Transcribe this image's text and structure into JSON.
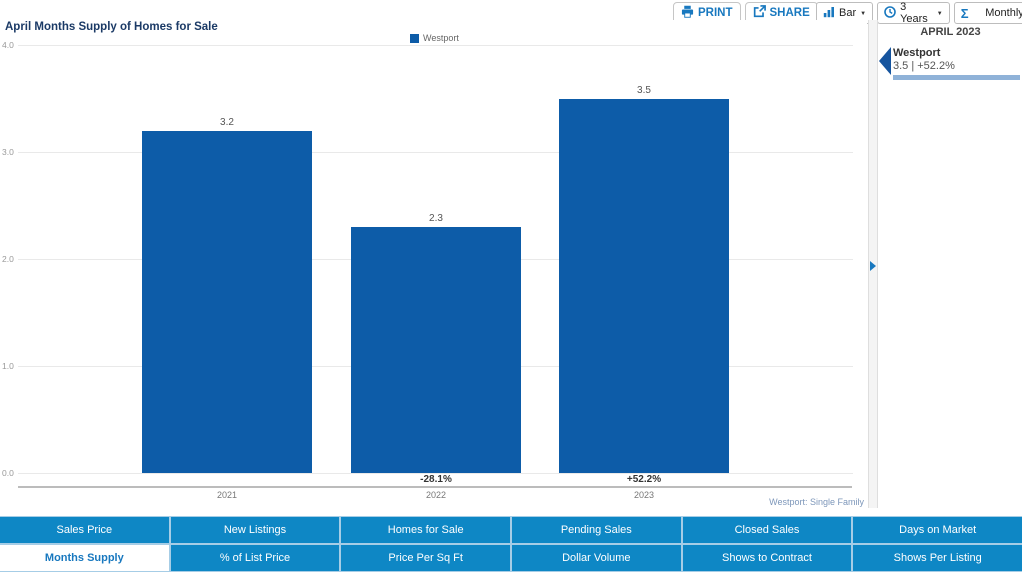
{
  "toolbar": {
    "print": "PRINT",
    "share": "SHARE",
    "chart_type_value": "Bar",
    "time_range_value": "3 Years",
    "aggregation_value": "Monthly"
  },
  "chart": {
    "footnote": "Westport: Single Family"
  },
  "chart_data": {
    "type": "bar",
    "title": "April Months Supply of Homes for Sale",
    "categories": [
      "2021",
      "2022",
      "2023"
    ],
    "series": [
      {
        "name": "Westport",
        "color": "#0d5ca8",
        "values": [
          3.2,
          2.3,
          3.5
        ]
      }
    ],
    "value_labels": [
      "3.2",
      "2.3",
      "3.5"
    ],
    "change_labels": [
      "",
      "-28.1%",
      "+52.2%"
    ],
    "xlabel": "",
    "ylabel": "",
    "ylim": [
      0,
      4
    ],
    "ytick_labels": [
      "0.0",
      "1.0",
      "2.0",
      "3.0",
      "4.0"
    ],
    "grid": true,
    "legend_position": "top-center"
  },
  "side_panel": {
    "period": "APRIL 2023",
    "items": [
      {
        "name": "Westport",
        "value": "3.5 | +52.2%",
        "marker_color": "#15549e",
        "bar_color": "#8fb2d8"
      }
    ]
  },
  "bottom_nav": {
    "selected": "Months Supply",
    "rows": [
      [
        "Sales Price",
        "New Listings",
        "Homes for Sale",
        "Pending Sales",
        "Closed Sales",
        "Days on Market"
      ],
      [
        "Months Supply",
        "% of List Price",
        "Price Per Sq Ft",
        "Dollar Volume",
        "Shows to Contract",
        "Shows Per Listing"
      ]
    ]
  },
  "colors": {
    "accent_blue": "#1878bf",
    "bar_blue": "#0d5ca8",
    "nav_button_blue": "#0e87c5",
    "nav_grid_blue": "#a6cde6",
    "title_navy": "#1b3a66"
  }
}
